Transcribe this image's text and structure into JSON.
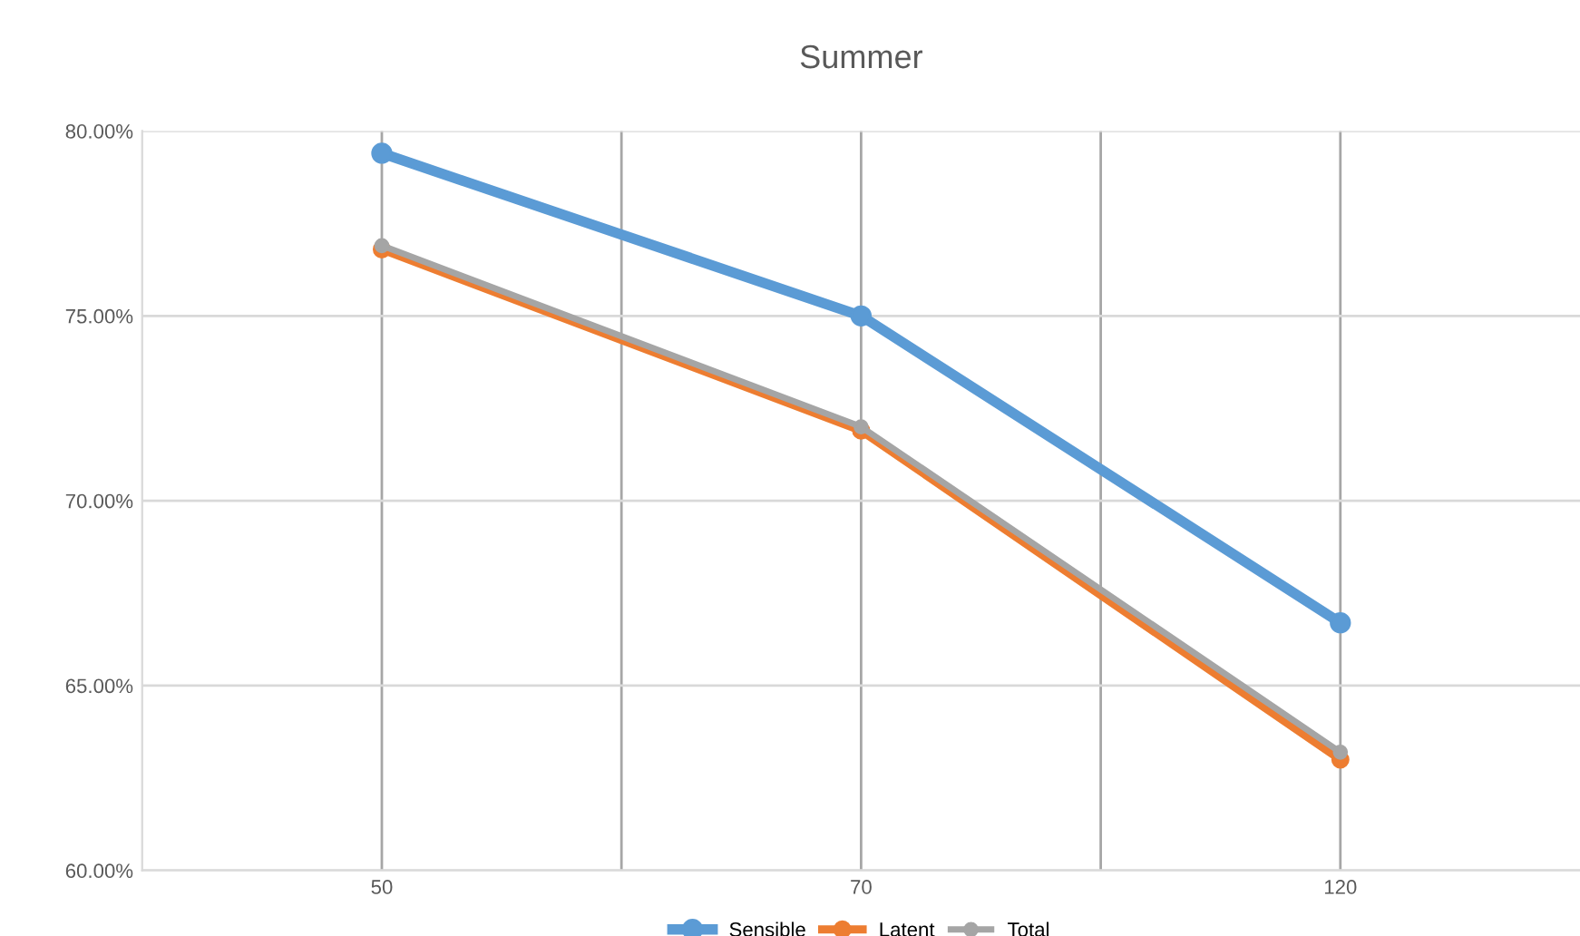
{
  "chart_data": {
    "type": "line",
    "title": "Summer",
    "categories": [
      "50",
      "70",
      "120"
    ],
    "series": [
      {
        "name": "Sensible",
        "color": "#5b9bd5",
        "values": [
          79.4,
          75.0,
          66.7
        ]
      },
      {
        "name": "Latent",
        "color": "#ed7d31",
        "values": [
          76.8,
          71.9,
          63.0
        ]
      },
      {
        "name": "Total",
        "color": "#a5a5a5",
        "values": [
          76.9,
          72.0,
          63.2
        ]
      }
    ],
    "ylim": [
      60,
      80
    ],
    "yticks": [
      {
        "value": 60,
        "label": "60.00%"
      },
      {
        "value": 65,
        "label": "65.00%"
      },
      {
        "value": 70,
        "label": "70.00%"
      },
      {
        "value": 75,
        "label": "75.00%"
      },
      {
        "value": 80,
        "label": "80.00%"
      }
    ],
    "grid": true,
    "legend": "bottom",
    "marker": "circle",
    "line_style": "solid"
  }
}
